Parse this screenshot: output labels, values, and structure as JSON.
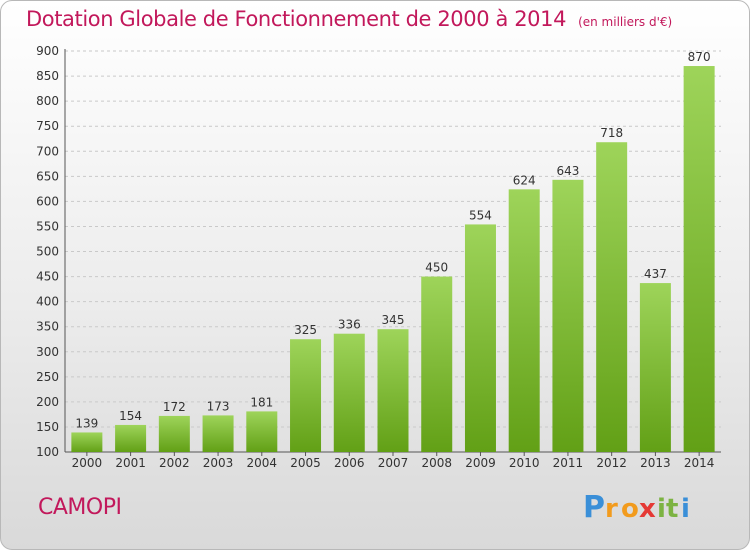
{
  "header": {
    "title": "Dotation Globale de Fonctionnement de 2000 à 2014",
    "unit_note": "(en milliers d'€)"
  },
  "footer": {
    "commune": "CAMOPI",
    "brand": "Proxiti"
  },
  "colors": {
    "title": "#c2185b",
    "bar_light": "#9ed45a",
    "bar_dark": "#62a016"
  },
  "chart_data": {
    "type": "bar",
    "categories": [
      "2000",
      "2001",
      "2002",
      "2003",
      "2004",
      "2005",
      "2006",
      "2007",
      "2008",
      "2009",
      "2010",
      "2011",
      "2012",
      "2013",
      "2014"
    ],
    "values": [
      139,
      154,
      172,
      173,
      181,
      325,
      336,
      345,
      450,
      554,
      624,
      643,
      718,
      437,
      870
    ],
    "ylim": [
      100,
      900
    ],
    "yticks": [
      100,
      150,
      200,
      250,
      300,
      350,
      400,
      450,
      500,
      550,
      600,
      650,
      700,
      750,
      800,
      850,
      900
    ],
    "grid": true,
    "data_labels": true
  }
}
